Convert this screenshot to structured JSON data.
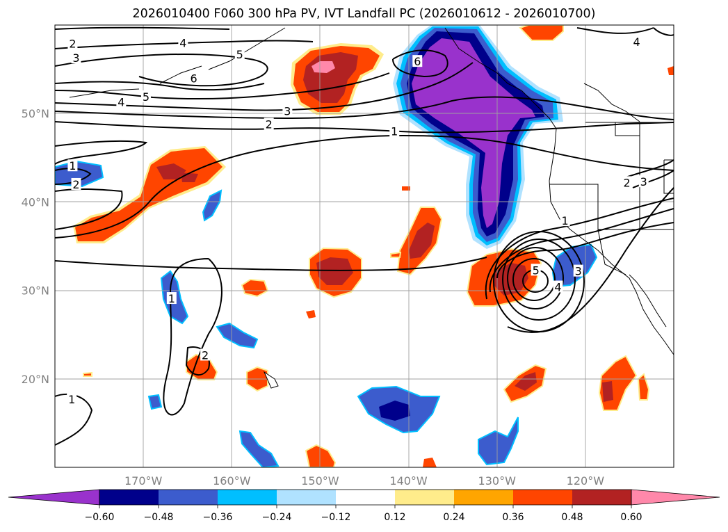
{
  "title": "2026010400 F060 300 hPa PV, IVT Landfall PC (2026010612 - 2026010700)",
  "map": {
    "lon_range": [
      -180,
      -110
    ],
    "lat_range": [
      10,
      60
    ],
    "lon_labels": [
      {
        "lon": -170,
        "text": "170°W"
      },
      {
        "lon": -160,
        "text": "160°W"
      },
      {
        "lon": -150,
        "text": "150°W"
      },
      {
        "lon": -140,
        "text": "140°W"
      },
      {
        "lon": -130,
        "text": "130°W"
      },
      {
        "lon": -120,
        "text": "120°W"
      }
    ],
    "lat_labels": [
      {
        "lat": 50,
        "text": "50°N"
      },
      {
        "lat": 40,
        "text": "40°N"
      },
      {
        "lat": 30,
        "text": "30°N"
      },
      {
        "lat": 20,
        "text": "20°N"
      }
    ],
    "contour_labels": [
      {
        "text": "2",
        "lon": -178.0,
        "lat": 57.9
      },
      {
        "text": "3",
        "lon": -177.6,
        "lat": 56.3
      },
      {
        "text": "4",
        "lon": -165.5,
        "lat": 58.0
      },
      {
        "text": "5",
        "lon": -159.1,
        "lat": 56.7
      },
      {
        "text": "6",
        "lon": -164.3,
        "lat": 54.0
      },
      {
        "text": "4",
        "lon": -172.5,
        "lat": 51.3
      },
      {
        "text": "5",
        "lon": -169.7,
        "lat": 51.9
      },
      {
        "text": "3",
        "lon": -153.7,
        "lat": 50.3
      },
      {
        "text": "2",
        "lon": -155.8,
        "lat": 48.8
      },
      {
        "text": "1",
        "lon": -141.6,
        "lat": 48.0
      },
      {
        "text": "6",
        "lon": -139.0,
        "lat": 55.9
      },
      {
        "text": "4",
        "lon": -114.2,
        "lat": 58.1
      },
      {
        "text": "1",
        "lon": -178.0,
        "lat": 44.1
      },
      {
        "text": "2",
        "lon": -177.6,
        "lat": 42.0
      },
      {
        "text": "1",
        "lon": -166.8,
        "lat": 29.1
      },
      {
        "text": "2",
        "lon": -163.0,
        "lat": 22.7
      },
      {
        "text": "1",
        "lon": -178.1,
        "lat": 17.7
      },
      {
        "text": "1",
        "lon": -122.3,
        "lat": 37.9
      },
      {
        "text": "2",
        "lon": -115.3,
        "lat": 42.2
      },
      {
        "text": "3",
        "lon": -113.4,
        "lat": 42.3
      },
      {
        "text": "5",
        "lon": -125.6,
        "lat": 32.3
      },
      {
        "text": "4",
        "lon": -123.1,
        "lat": 30.4
      },
      {
        "text": "3",
        "lon": -120.8,
        "lat": 32.2
      }
    ]
  },
  "colorbar": {
    "colors": [
      "#9932cc",
      "#00008b",
      "#3c5ccd",
      "#00bfff",
      "#b0e2ff",
      "#ffffff",
      "#ffec8b",
      "#ffa500",
      "#ff4500",
      "#b22222",
      "#ff88aa"
    ],
    "ticks": [
      "−0.60",
      "−0.48",
      "−0.36",
      "−0.24",
      "−0.12",
      "0.12",
      "0.24",
      "0.36",
      "0.48",
      "0.60"
    ]
  }
}
